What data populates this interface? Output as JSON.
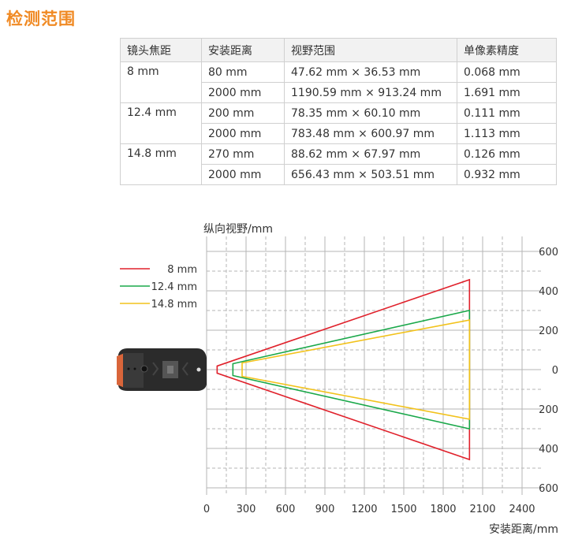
{
  "title": "检测范围",
  "table": {
    "headers": [
      "镜头焦距",
      "安装距离",
      "视野范围",
      "单像素精度"
    ],
    "groups": [
      {
        "lens": "8 mm",
        "rows": [
          [
            "80 mm",
            "47.62 mm × 36.53 mm",
            "0.068 mm"
          ],
          [
            "2000 mm",
            "1190.59 mm × 913.24 mm",
            "1.691 mm"
          ]
        ]
      },
      {
        "lens": "12.4 mm",
        "rows": [
          [
            "200 mm",
            "78.35 mm × 60.10 mm",
            "0.111 mm"
          ],
          [
            "2000 mm",
            "783.48 mm × 600.97 mm",
            "1.113 mm"
          ]
        ]
      },
      {
        "lens": "14.8 mm",
        "rows": [
          [
            "270 mm",
            "88.62 mm × 67.97 mm",
            "0.126 mm"
          ],
          [
            "2000 mm",
            "656.43 mm × 503.51 mm",
            "0.932 mm"
          ]
        ]
      }
    ]
  },
  "chart_data": {
    "type": "line",
    "ylabel": "纵向视野/mm",
    "xlabel": "安装距离/mm",
    "xticks": [
      "0",
      "300",
      "600",
      "900",
      "1200",
      "1500",
      "1800",
      "2100",
      "2400"
    ],
    "yticks": [
      "600",
      "400",
      "200",
      "0",
      "200",
      "400",
      "600"
    ],
    "xlim": [
      0,
      2400
    ],
    "ylim": [
      -600,
      600
    ],
    "grid": true,
    "legend_placement": "left",
    "series": [
      {
        "name": "8 mm",
        "color": "#e0212b",
        "near": [
          80,
          18.27
        ],
        "far": [
          2000,
          456.62
        ]
      },
      {
        "name": "12.4 mm",
        "color": "#1aa84a",
        "near": [
          200,
          30.05
        ],
        "far": [
          2000,
          300.49
        ]
      },
      {
        "name": "14.8 mm",
        "color": "#f2c21b",
        "near": [
          270,
          33.99
        ],
        "far": [
          2000,
          251.76
        ]
      }
    ]
  }
}
